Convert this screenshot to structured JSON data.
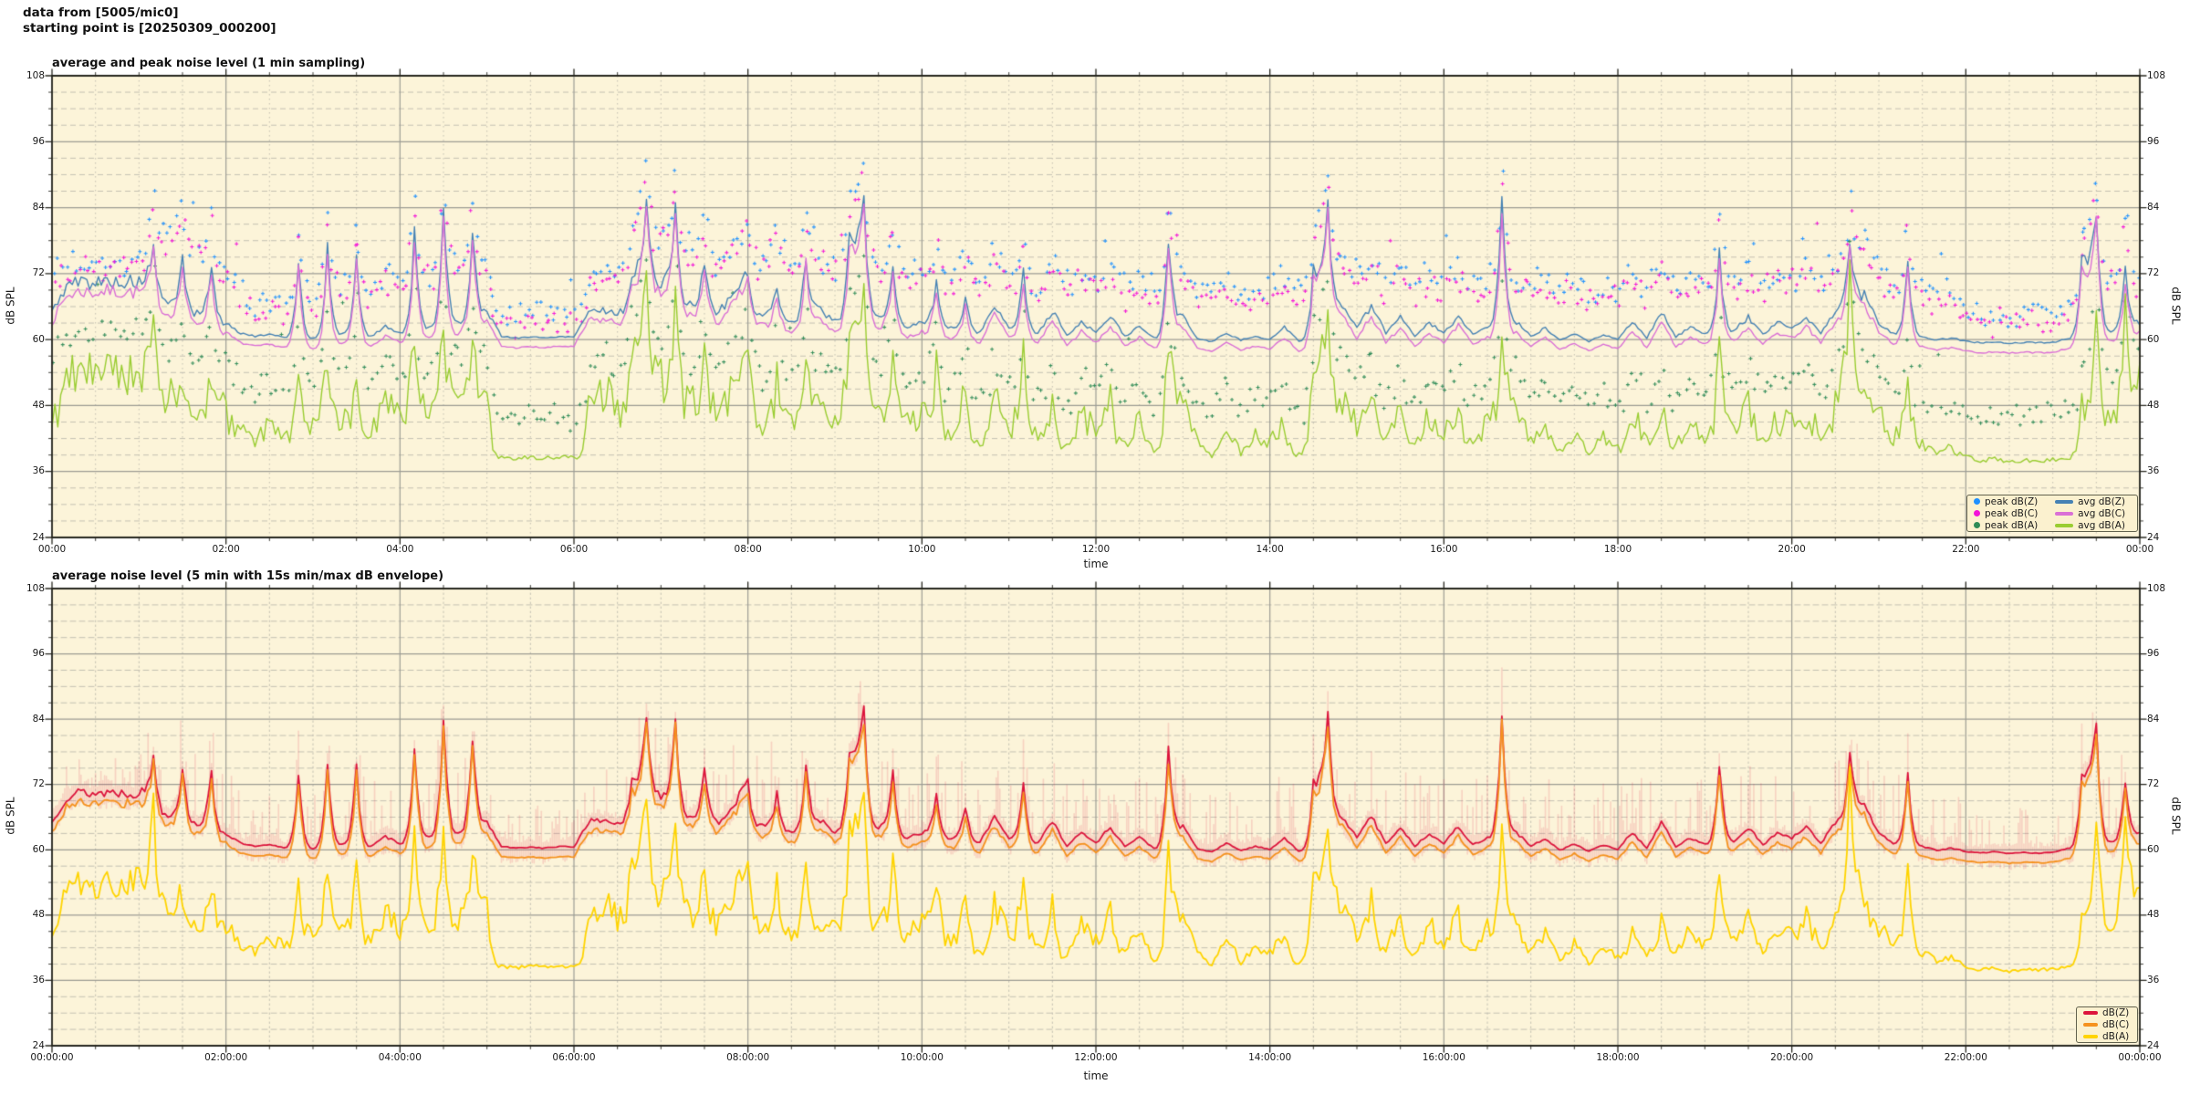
{
  "header": {
    "line1": "data from [5005/mic0]",
    "line2": "starting point is [20250309_000200]"
  },
  "series_bank": {
    "time_step_min": 10,
    "avg_dbz": [
      65.0,
      69.8,
      70.6,
      70.3,
      70.7,
      70.4,
      70.5,
      77.6,
      66.5,
      75.2,
      64.8,
      74.0,
      63.0,
      61.2,
      60.6,
      60.9,
      60.4,
      74.5,
      60.2,
      76.4,
      61.0,
      75.6,
      60.6,
      62.4,
      61.2,
      79.2,
      62.2,
      84.3,
      63.0,
      80.1,
      65.0,
      60.6,
      60.3,
      60.5,
      60.3,
      60.6,
      60.5,
      65.2,
      65.4,
      64.9,
      72.3,
      85.2,
      70.2,
      84.4,
      66.2,
      74.3,
      65.1,
      68.3,
      72.1,
      64.3,
      70.4,
      63.2,
      75.3,
      65.4,
      63.3,
      78.2,
      85.4,
      64.2,
      74.1,
      62.3,
      63.2,
      70.3,
      62.1,
      68.2,
      61.3,
      66.2,
      62.2,
      72.3,
      61.2,
      65.3,
      60.7,
      63.2,
      61.2,
      64.2,
      60.6,
      62.3,
      60.3,
      78.2,
      64.2,
      60.2,
      59.6,
      61.2,
      59.9,
      60.6,
      60.1,
      62.2,
      59.7,
      72.3,
      85.1,
      66.2,
      62.1,
      66.3,
      61.1,
      64.2,
      60.6,
      63.1,
      61.1,
      64.3,
      60.9,
      62.2,
      84.8,
      63.2,
      60.6,
      62.1,
      59.9,
      61.1,
      59.7,
      60.9,
      60.1,
      63.2,
      60.3,
      65.1,
      60.5,
      62.2,
      61.1,
      76.2,
      61.6,
      64.1,
      60.9,
      63.1,
      62.1,
      64.2,
      61.1,
      65.2,
      78.3,
      68.1,
      63.1,
      61.1,
      74.2,
      60.6,
      59.9,
      60.3,
      59.7,
      59.4,
      59.6,
      59.3,
      59.5,
      59.4,
      59.5,
      60.2,
      74.0,
      83.0,
      61.5,
      72.8,
      63.0
    ],
    "avg_dbc": [
      63.2,
      68.0,
      68.8,
      68.5,
      68.9,
      68.6,
      68.7,
      75.8,
      64.7,
      73.4,
      63.0,
      72.2,
      61.2,
      59.4,
      58.8,
      59.1,
      58.6,
      72.7,
      58.4,
      74.6,
      59.2,
      73.8,
      58.8,
      60.6,
      59.4,
      77.4,
      60.4,
      82.5,
      61.2,
      78.3,
      63.2,
      58.8,
      58.5,
      58.7,
      58.5,
      58.8,
      58.7,
      63.4,
      63.6,
      63.1,
      70.5,
      83.4,
      68.4,
      82.6,
      64.4,
      72.5,
      63.3,
      66.5,
      70.3,
      62.5,
      68.6,
      61.4,
      73.5,
      63.6,
      61.5,
      76.4,
      83.6,
      62.4,
      72.3,
      60.5,
      61.4,
      68.5,
      60.3,
      66.4,
      59.5,
      64.4,
      60.4,
      70.5,
      59.4,
      63.5,
      58.9,
      61.4,
      59.4,
      62.4,
      58.8,
      60.5,
      58.5,
      76.4,
      62.4,
      58.4,
      57.8,
      59.4,
      58.1,
      58.8,
      58.3,
      60.4,
      57.9,
      70.5,
      83.3,
      64.4,
      60.3,
      64.5,
      59.3,
      62.4,
      58.8,
      61.3,
      59.3,
      62.5,
      59.1,
      60.4,
      83.0,
      61.4,
      58.8,
      60.3,
      58.1,
      59.3,
      57.9,
      59.1,
      58.3,
      61.4,
      58.5,
      63.3,
      58.7,
      60.4,
      59.3,
      74.4,
      59.8,
      62.3,
      59.1,
      61.3,
      60.3,
      62.4,
      59.3,
      63.4,
      76.5,
      66.3,
      61.3,
      59.3,
      72.4,
      58.8,
      58.1,
      58.5,
      57.9,
      57.6,
      57.8,
      57.5,
      57.7,
      57.6,
      57.7,
      58.4,
      72.2,
      81.2,
      59.7,
      71.0,
      61.2
    ],
    "avg_dba": [
      46.0,
      53.2,
      54.1,
      53.6,
      54.0,
      53.8,
      54.0,
      68.2,
      48.2,
      52.3,
      45.2,
      50.3,
      46.2,
      43.1,
      41.2,
      44.3,
      42.1,
      55.2,
      44.2,
      58.3,
      45.1,
      56.2,
      43.2,
      48.1,
      45.2,
      62.3,
      46.2,
      65.4,
      47.1,
      60.2,
      50.1,
      38.6,
      38.3,
      38.7,
      38.4,
      38.6,
      38.5,
      48.2,
      50.3,
      47.2,
      58.3,
      70.2,
      52.3,
      66.4,
      48.3,
      58.2,
      46.2,
      52.2,
      56.3,
      45.2,
      54.2,
      44.2,
      60.3,
      47.2,
      45.3,
      62.4,
      68.3,
      46.3,
      58.2,
      44.3,
      46.2,
      55.3,
      43.2,
      52.2,
      41.3,
      50.2,
      44.3,
      57.2,
      42.3,
      50.3,
      40.3,
      46.2,
      43.2,
      48.3,
      41.3,
      45.2,
      39.3,
      60.3,
      47.2,
      41.3,
      38.7,
      44.2,
      39.2,
      42.3,
      41.2,
      45.3,
      39.2,
      55.3,
      65.2,
      49.2,
      44.2,
      51.3,
      42.2,
      48.2,
      40.3,
      46.3,
      42.2,
      48.2,
      41.2,
      45.3,
      63.2,
      46.2,
      41.3,
      44.2,
      39.7,
      43.2,
      39.2,
      42.2,
      40.2,
      46.3,
      41.3,
      49.2,
      40.7,
      45.2,
      42.3,
      58.2,
      43.3,
      47.2,
      41.2,
      45.3,
      44.2,
      47.3,
      42.3,
      49.3,
      72.2,
      52.3,
      46.2,
      42.3,
      55.2,
      41.2,
      39.7,
      40.2,
      38.6,
      37.9,
      38.3,
      37.7,
      38.1,
      37.9,
      38.1,
      38.5,
      48.2,
      68.0,
      46.3,
      65.0,
      52.0
    ],
    "peak_dbz": [
      73.2,
      74.1,
      73.6,
      74.4,
      73.9,
      74.2,
      75.2,
      88.3,
      78.2,
      84.2,
      76.1,
      83.2,
      72.1,
      68.2,
      66.3,
      67.2,
      66.6,
      80.2,
      68.3,
      84.2,
      70.2,
      83.3,
      69.2,
      72.3,
      70.2,
      88.4,
      72.3,
      92.3,
      73.2,
      87.2,
      73.1,
      65.2,
      64.3,
      65.6,
      64.9,
      65.3,
      65.2,
      72.3,
      73.2,
      72.6,
      82.2,
      93.3,
      79.2,
      91.2,
      76.3,
      83.2,
      74.2,
      78.3,
      81.2,
      74.3,
      79.2,
      73.3,
      84.2,
      75.2,
      73.2,
      86.3,
      93.2,
      74.3,
      83.2,
      72.2,
      72.3,
      79.2,
      71.2,
      77.3,
      70.2,
      75.3,
      71.2,
      80.2,
      70.3,
      74.2,
      69.7,
      72.2,
      70.2,
      73.3,
      69.2,
      71.3,
      68.7,
      86.2,
      73.2,
      69.2,
      68.3,
      70.3,
      68.7,
      69.7,
      69.2,
      71.3,
      68.2,
      80.3,
      92.2,
      75.3,
      71.3,
      75.2,
      70.3,
      73.2,
      69.7,
      72.3,
      70.3,
      73.2,
      69.9,
      71.2,
      92.3,
      72.3,
      69.7,
      71.2,
      68.9,
      70.2,
      68.7,
      69.9,
      69.2,
      72.2,
      69.3,
      74.3,
      69.5,
      71.2,
      70.2,
      84.3,
      70.7,
      73.3,
      69.9,
      72.2,
      71.2,
      73.3,
      70.2,
      74.2,
      86.3,
      77.2,
      72.2,
      70.2,
      82.3,
      69.7,
      68.9,
      69.3,
      65.3,
      64.9,
      65.1,
      64.8,
      65.0,
      64.9,
      65.1,
      65.4,
      80.2,
      90.2,
      71.2,
      84.2,
      70.3
    ],
    "peak_dbc": [
      71.6,
      72.5,
      72.0,
      72.8,
      72.3,
      72.6,
      73.6,
      86.7,
      76.6,
      82.6,
      74.5,
      81.6,
      70.5,
      66.6,
      64.7,
      65.6,
      65.0,
      78.6,
      66.7,
      82.6,
      68.6,
      81.7,
      67.6,
      70.7,
      68.6,
      86.8,
      70.7,
      90.7,
      71.6,
      85.6,
      71.5,
      63.6,
      62.7,
      64.0,
      63.3,
      63.7,
      63.6,
      70.7,
      71.6,
      71.0,
      80.6,
      91.7,
      77.6,
      89.6,
      74.7,
      81.6,
      72.6,
      76.7,
      79.6,
      72.7,
      77.6,
      71.7,
      82.6,
      73.6,
      71.6,
      84.7,
      91.6,
      72.7,
      81.6,
      70.6,
      70.7,
      77.6,
      69.6,
      75.7,
      68.6,
      73.7,
      69.6,
      78.6,
      68.7,
      72.6,
      68.1,
      70.6,
      68.6,
      71.7,
      67.6,
      69.7,
      67.1,
      84.6,
      71.6,
      67.6,
      66.7,
      68.7,
      67.1,
      68.1,
      67.6,
      69.7,
      66.6,
      78.7,
      90.6,
      73.7,
      69.7,
      73.6,
      68.7,
      71.6,
      68.1,
      70.7,
      68.7,
      71.6,
      68.3,
      69.6,
      90.7,
      70.7,
      68.1,
      69.6,
      67.3,
      68.6,
      67.1,
      68.3,
      67.6,
      70.6,
      67.7,
      72.7,
      67.9,
      69.6,
      68.6,
      82.7,
      69.1,
      71.7,
      68.3,
      70.6,
      69.6,
      71.7,
      68.6,
      72.6,
      84.7,
      75.6,
      70.6,
      68.6,
      80.7,
      68.1,
      67.3,
      67.7,
      63.7,
      63.3,
      63.5,
      63.2,
      63.4,
      63.3,
      63.5,
      63.8,
      78.6,
      88.6,
      69.6,
      82.6,
      68.7
    ],
    "peak_dba": [
      56.2,
      60.1,
      61.2,
      60.6,
      61.1,
      60.8,
      62.1,
      75.2,
      58.2,
      63.1,
      55.2,
      60.2,
      55.1,
      52.2,
      50.1,
      53.2,
      51.1,
      63.2,
      53.1,
      66.2,
      54.1,
      64.2,
      52.1,
      57.2,
      54.1,
      70.2,
      55.2,
      73.2,
      56.1,
      68.2,
      58.1,
      46.2,
      45.1,
      46.6,
      45.9,
      46.3,
      46.1,
      56.2,
      58.1,
      55.2,
      66.1,
      78.2,
      60.2,
      74.2,
      56.1,
      66.2,
      54.1,
      60.1,
      64.2,
      53.1,
      62.2,
      52.1,
      68.2,
      55.1,
      53.2,
      70.1,
      76.2,
      54.2,
      66.2,
      52.2,
      54.2,
      63.1,
      51.2,
      60.2,
      49.1,
      58.2,
      52.1,
      65.2,
      50.2,
      58.1,
      48.1,
      54.2,
      51.1,
      56.2,
      49.2,
      53.1,
      47.2,
      68.1,
      55.2,
      49.1,
      46.7,
      52.2,
      47.1,
      50.1,
      49.2,
      53.2,
      47.1,
      63.2,
      73.1,
      57.2,
      52.2,
      59.1,
      50.1,
      56.2,
      48.2,
      54.1,
      50.2,
      56.1,
      49.1,
      53.2,
      71.2,
      54.2,
      49.1,
      52.2,
      47.7,
      51.1,
      47.1,
      50.2,
      48.1,
      54.2,
      49.2,
      57.1,
      48.6,
      53.1,
      50.1,
      66.2,
      51.1,
      55.2,
      49.2,
      53.2,
      52.1,
      55.2,
      50.1,
      57.2,
      80.1,
      60.2,
      54.1,
      50.2,
      63.1,
      49.1,
      47.6,
      48.2,
      46.6,
      45.9,
      46.2,
      45.7,
      46.1,
      45.9,
      46.1,
      46.5,
      55.2,
      74.2,
      54.1,
      70.2,
      58.2
    ]
  },
  "chart_data": [
    {
      "type": "line+scatter",
      "title": "average and peak noise level (1 min sampling)",
      "xlabel": "time",
      "ylabel_left": "dB SPL",
      "ylabel_right": "dB SPL",
      "xlim_minutes": [
        0,
        1440
      ],
      "ylim": [
        24,
        108
      ],
      "y_major_step_db": 12,
      "y_minor_step_db": 3,
      "x_major_step_min": 120,
      "x_minor_step_min": 30,
      "grid": {
        "major": "solid",
        "minor": "dashed/dotted"
      },
      "background": "#FCF4D9",
      "x_tick_labels": [
        "00:00",
        "02:00",
        "04:00",
        "06:00",
        "08:00",
        "10:00",
        "12:00",
        "14:00",
        "16:00",
        "18:00",
        "20:00",
        "22:00",
        "00:00"
      ],
      "y_tick_labels": [
        "108",
        "96",
        "84",
        "72",
        "60",
        "48",
        "36",
        "24"
      ],
      "legend": [
        {
          "label": "peak dB(Z)",
          "marker": "dot",
          "color": "#1E90FF"
        },
        {
          "label": "peak dB(C)",
          "marker": "dot",
          "color": "#F313D8"
        },
        {
          "label": "peak dB(A)",
          "marker": "dot",
          "color": "#2E8B57"
        },
        {
          "label": "avg dB(Z)",
          "marker": "line",
          "color": "#4682B4"
        },
        {
          "label": "avg dB(C)",
          "marker": "line",
          "color": "#DA70D6"
        },
        {
          "label": "avg dB(A)",
          "marker": "line",
          "color": "#9ACD32"
        }
      ],
      "series": [
        {
          "name": "peak dB(Z)",
          "type": "scatter",
          "color": "#1E90FF",
          "bank": "peak_dbz",
          "seed": 11
        },
        {
          "name": "peak dB(C)",
          "type": "scatter",
          "color": "#F313D8",
          "bank": "peak_dbc",
          "seed": 23
        },
        {
          "name": "peak dB(A)",
          "type": "scatter",
          "color": "#2E8B57",
          "bank": "peak_dba",
          "seed": 37
        },
        {
          "name": "avg dB(Z)",
          "type": "line",
          "color": "#4682B4",
          "bank": "avg_dbz",
          "seed": 5,
          "jitter": 1.1,
          "act_base": 59.5,
          "act_div": 9,
          "width": 1.4
        },
        {
          "name": "avg dB(C)",
          "type": "line",
          "color": "#DA70D6",
          "bank": "avg_dbc",
          "seed": 7,
          "jitter": 1.1,
          "act_base": 57.7,
          "act_div": 9,
          "width": 1.4
        },
        {
          "name": "avg dB(A)",
          "type": "line",
          "color": "#9ACD32",
          "bank": "avg_dba",
          "seed": 9,
          "jitter": 3.4,
          "act_base": 37.8,
          "act_div": 9,
          "width": 1.4
        }
      ]
    },
    {
      "type": "line+envelope",
      "title": "average noise level (5 min with 15s min/max dB envelope)",
      "xlabel": "time",
      "ylabel_left": "dB SPL",
      "ylabel_right": "dB SPL",
      "xlim_minutes": [
        0,
        1440
      ],
      "ylim": [
        24,
        108
      ],
      "y_major_step_db": 12,
      "y_minor_step_db": 3,
      "x_major_step_min": 120,
      "x_minor_step_min": 30,
      "grid": {
        "major": "solid",
        "minor": "dashed/dotted"
      },
      "background": "#FCF4D9",
      "x_tick_labels": [
        "00:00:00",
        "02:00:00",
        "04:00:00",
        "06:00:00",
        "08:00:00",
        "10:00:00",
        "12:00:00",
        "14:00:00",
        "16:00:00",
        "18:00:00",
        "20:00:00",
        "22:00:00",
        "00:00:00"
      ],
      "y_tick_labels": [
        "108",
        "96",
        "84",
        "72",
        "60",
        "48",
        "36",
        "24"
      ],
      "legend": [
        {
          "label": "dB(Z)",
          "marker": "line",
          "color": "#DC143C"
        },
        {
          "label": "dB(C)",
          "marker": "line",
          "color": "#F5921E"
        },
        {
          "label": "dB(A)",
          "marker": "line",
          "color": "#FFD400"
        }
      ],
      "series": [
        {
          "name": "min/max envelope",
          "type": "envelope",
          "color": "rgba(220,20,60,0.15)",
          "bank": "avg_dbz",
          "hi_bank": "peak_dbz",
          "seed": 41
        },
        {
          "name": "dB(Z)",
          "type": "line",
          "color": "#DC143C",
          "bank": "avg_dbz",
          "seed": 13,
          "jitter": 0.8,
          "act_base": 59.5,
          "act_div": 9,
          "width": 1.8
        },
        {
          "name": "dB(C)",
          "type": "line",
          "color": "#F5921E",
          "bank": "avg_dbc",
          "seed": 17,
          "jitter": 0.8,
          "act_base": 57.7,
          "act_div": 9,
          "width": 1.8
        },
        {
          "name": "dB(A)",
          "type": "line",
          "color": "#FFD400",
          "bank": "avg_dba",
          "seed": 19,
          "jitter": 2.4,
          "act_base": 37.8,
          "act_div": 9,
          "width": 1.8
        }
      ]
    }
  ]
}
